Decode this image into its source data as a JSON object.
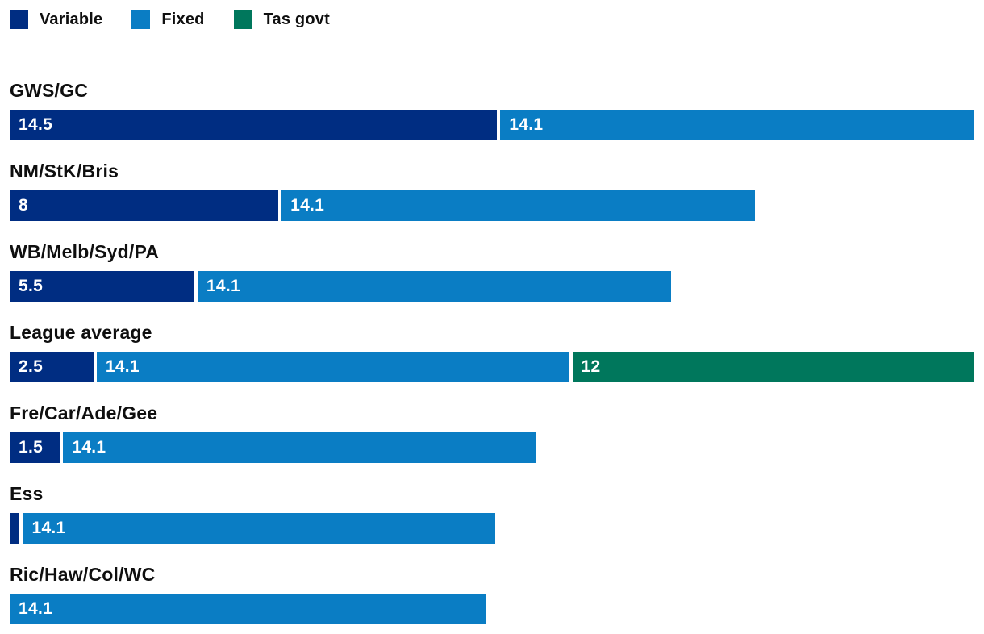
{
  "colors": {
    "variable": "#002d82",
    "fixed": "#0a7dc4",
    "tas_govt": "#00775c",
    "category_text": "#0f0f0f",
    "bar_value_text": "#ffffff",
    "background": "#ffffff"
  },
  "legend": {
    "items": [
      {
        "key": "variable",
        "label": "Variable"
      },
      {
        "key": "fixed",
        "label": "Fixed"
      },
      {
        "key": "tas_govt",
        "label": "Tas govt"
      }
    ]
  },
  "chart_data": {
    "type": "bar",
    "orientation": "horizontal",
    "stacked": true,
    "title": "",
    "xlabel": "",
    "ylabel": "",
    "axis_visible": false,
    "grid": false,
    "legend_position": "top-left",
    "max_stack_total": 28.6,
    "categories": [
      "GWS/GC",
      "NM/StK/Bris",
      "WB/Melb/Syd/PA",
      "League average",
      "Fre/Car/Ade/Gee",
      "Ess",
      "Ric/Haw/Col/WC"
    ],
    "series": [
      {
        "name": "Variable",
        "values": [
          14.5,
          8,
          5.5,
          2.5,
          1.5,
          0.3,
          0
        ]
      },
      {
        "name": "Fixed",
        "values": [
          14.1,
          14.1,
          14.1,
          14.1,
          14.1,
          14.1,
          14.1
        ]
      },
      {
        "name": "Tas govt",
        "values": [
          0,
          0,
          0,
          12,
          0,
          0,
          0
        ]
      }
    ]
  },
  "rows": [
    {
      "category": "GWS/GC",
      "segments": [
        {
          "key": "variable",
          "value": 14.5,
          "label": "14.5"
        },
        {
          "key": "fixed",
          "value": 14.1,
          "label": "14.1"
        }
      ]
    },
    {
      "category": "NM/StK/Bris",
      "segments": [
        {
          "key": "variable",
          "value": 8,
          "label": "8"
        },
        {
          "key": "fixed",
          "value": 14.1,
          "label": "14.1"
        }
      ]
    },
    {
      "category": "WB/Melb/Syd/PA",
      "segments": [
        {
          "key": "variable",
          "value": 5.5,
          "label": "5.5"
        },
        {
          "key": "fixed",
          "value": 14.1,
          "label": "14.1"
        }
      ]
    },
    {
      "category": "League average",
      "segments": [
        {
          "key": "variable",
          "value": 2.5,
          "label": "2.5"
        },
        {
          "key": "fixed",
          "value": 14.1,
          "label": "14.1"
        },
        {
          "key": "tas_govt",
          "value": 12,
          "label": "12"
        }
      ]
    },
    {
      "category": "Fre/Car/Ade/Gee",
      "segments": [
        {
          "key": "variable",
          "value": 1.5,
          "label": "1.5"
        },
        {
          "key": "fixed",
          "value": 14.1,
          "label": "14.1"
        }
      ]
    },
    {
      "category": "Ess",
      "segments": [
        {
          "key": "variable",
          "value": 0.3,
          "label": ""
        },
        {
          "key": "fixed",
          "value": 14.1,
          "label": "14.1"
        }
      ]
    },
    {
      "category": "Ric/Haw/Col/WC",
      "segments": [
        {
          "key": "fixed",
          "value": 14.1,
          "label": "14.1"
        }
      ]
    }
  ]
}
